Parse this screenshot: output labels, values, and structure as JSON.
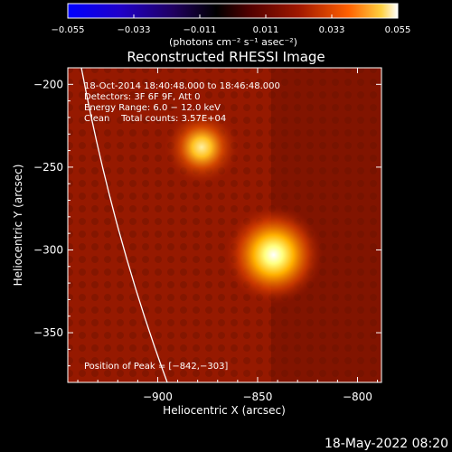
{
  "chart_data": {
    "type": "heatmap",
    "title": "Reconstructed RHESSI Image",
    "xlabel": "Heliocentric X (arcsec)",
    "ylabel": "Heliocentric Y (arcsec)",
    "xlim": [
      -945,
      -788
    ],
    "ylim": [
      -380,
      -190
    ],
    "x_ticks": [
      -900,
      -850,
      -800
    ],
    "x_tick_labels": [
      "−900",
      "−850",
      "−800"
    ],
    "y_ticks": [
      -200,
      -250,
      -300,
      -350
    ],
    "y_tick_labels": [
      "−200",
      "−250",
      "−300",
      "−350"
    ],
    "colorbar": {
      "min": -0.055,
      "max": 0.055,
      "ticks": [
        -0.055,
        -0.033,
        -0.011,
        0.011,
        0.033,
        0.055
      ],
      "tick_labels": [
        "−0.055",
        "−0.033",
        "−0.011",
        "0.011",
        "0.033",
        "0.055"
      ],
      "unit_label": "(photons cm⁻² s⁻¹ asec⁻²)"
    },
    "info_lines": [
      "18-Oct-2014 18:40:48.000 to 18:46:48.000",
      "Detectors: 3F 6F 9F, Att 0",
      "Energy Range: 6.0 − 12.0 keV",
      "Clean    Total counts: 3.57E+04"
    ],
    "sources": [
      {
        "x": -842,
        "y": -303,
        "intensity": 0.055
      },
      {
        "x": -878,
        "y": -238,
        "intensity": 0.042
      }
    ],
    "peak_label": "Position of Peak = [−842,−303]",
    "timestamp": "18-May-2022 08:20",
    "colors": {
      "background_level": "#961900",
      "limb_line": "#ffffff"
    }
  }
}
